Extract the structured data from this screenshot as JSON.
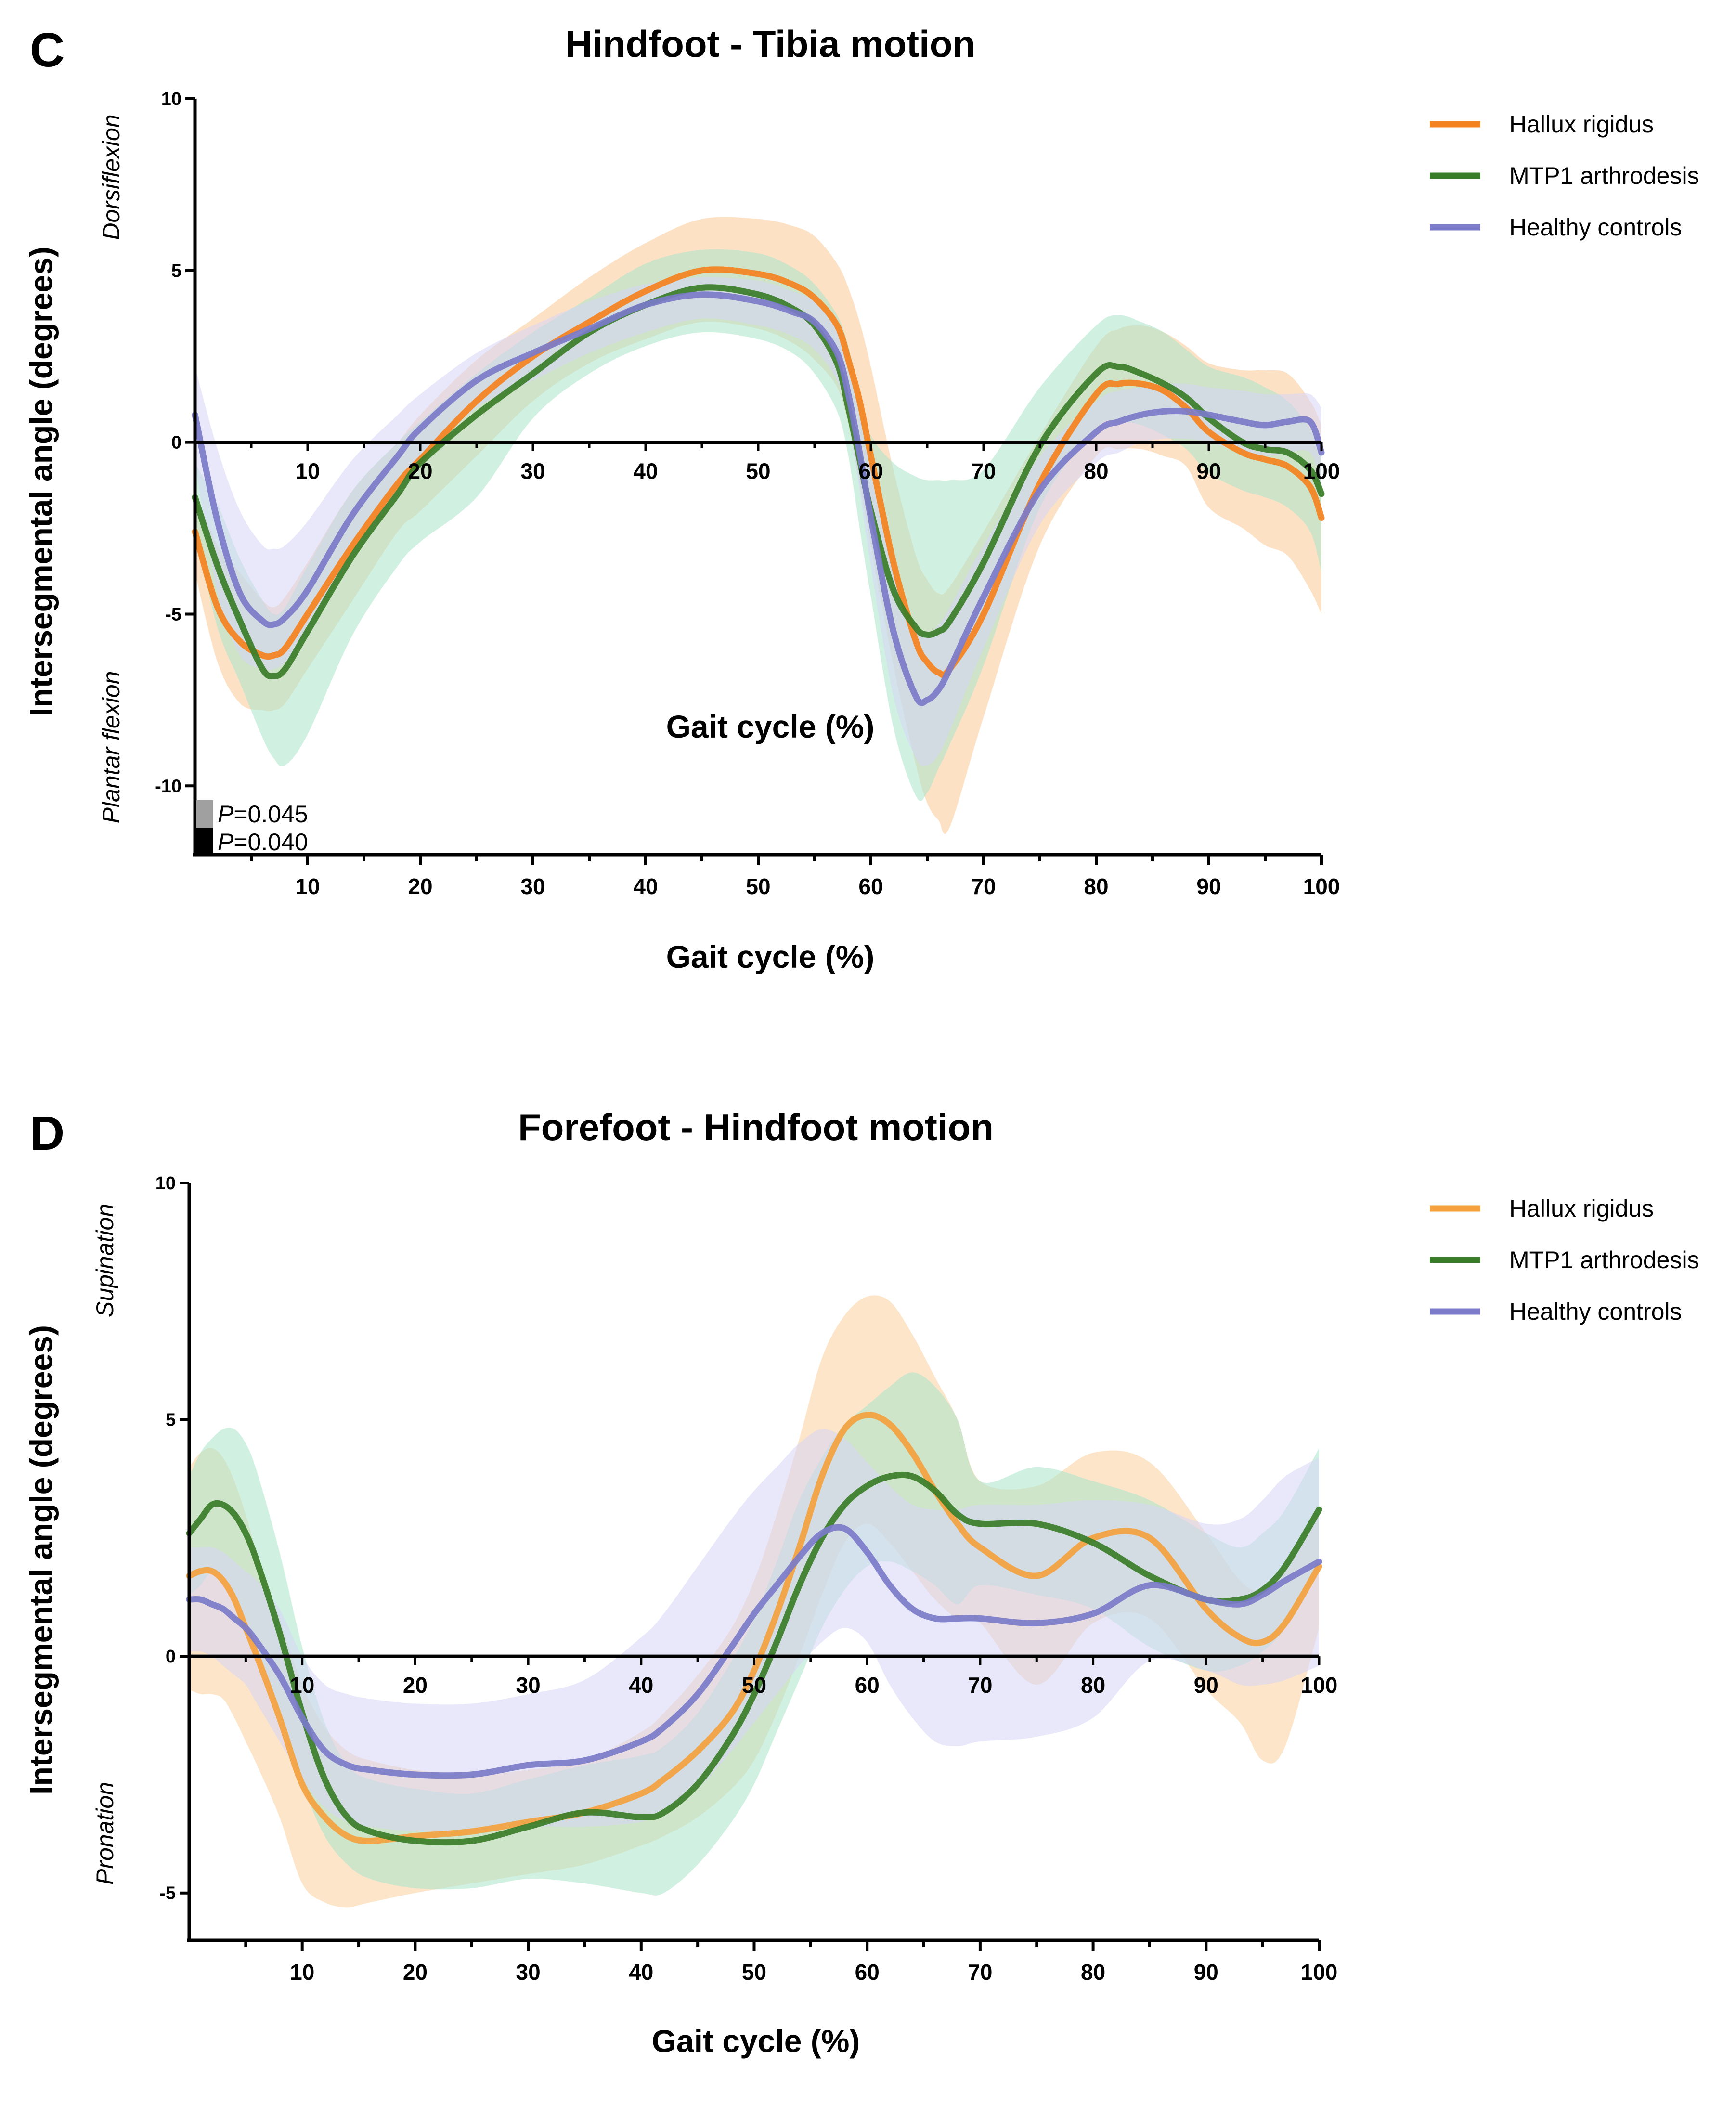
{
  "panels": [
    {
      "letter": "C",
      "chart_data": {
        "type": "line",
        "title": "Hindfoot - Tibia motion",
        "xlabel": "Gait cycle (%)",
        "ylabel": "Intersegmental angle (degrees)",
        "direction_positive": "Dorsiflexion",
        "direction_negative": "Plantar flexion",
        "xlim": [
          0,
          100
        ],
        "ylim": [
          -12,
          10
        ],
        "x_ticks": [
          10,
          20,
          30,
          40,
          50,
          60,
          70,
          80,
          90,
          100
        ],
        "y_ticks": [
          -10,
          -5,
          0,
          5,
          10
        ],
        "zero_line_tick_labels": true,
        "legend": [
          "Hallux rigidus",
          "MTP1 arthrodesis",
          "Healthy controls"
        ],
        "x": [
          0,
          2,
          4,
          6,
          7,
          8,
          10,
          14,
          18,
          20,
          25,
          30,
          35,
          40,
          45,
          50,
          53,
          55,
          57,
          58,
          59,
          60,
          62,
          64,
          65,
          66,
          67,
          70,
          75,
          80,
          82,
          84,
          86,
          88,
          90,
          93,
          95,
          97,
          99,
          100
        ],
        "series": [
          {
            "name": "Hallux rigidus",
            "color": "#f4821f",
            "band_color": "#fbc995",
            "mean": [
              -2.6,
              -4.8,
              -5.8,
              -6.2,
              -6.2,
              -6.0,
              -5.0,
              -3.0,
              -1.2,
              -0.5,
              1.2,
              2.5,
              3.5,
              4.4,
              5.0,
              4.9,
              4.6,
              4.2,
              3.4,
              2.4,
              1.2,
              -0.4,
              -3.5,
              -5.8,
              -6.4,
              -6.7,
              -6.6,
              -5.0,
              -1.2,
              1.4,
              1.7,
              1.7,
              1.5,
              1.0,
              0.3,
              -0.3,
              -0.5,
              -0.7,
              -1.3,
              -2.2
            ],
            "upper": [
              -1.4,
              -3.0,
              -3.8,
              -4.6,
              -4.8,
              -4.5,
              -3.5,
              -1.4,
              0.0,
              0.8,
              2.4,
              3.6,
              4.8,
              5.8,
              6.5,
              6.5,
              6.3,
              6.0,
              5.2,
              4.5,
              3.5,
              2.2,
              -0.8,
              -3.3,
              -4.0,
              -4.4,
              -4.2,
              -2.6,
              0.2,
              2.8,
              3.3,
              3.4,
              3.2,
              2.8,
              2.3,
              2.1,
              2.1,
              2.0,
              1.2,
              0.5
            ],
            "lower": [
              -3.8,
              -6.4,
              -7.6,
              -7.8,
              -7.8,
              -7.6,
              -6.6,
              -4.6,
              -2.6,
              -2.0,
              -0.4,
              1.2,
              2.3,
              3.0,
              3.5,
              3.3,
              2.9,
              2.4,
              1.6,
              0.5,
              -1.2,
              -3.0,
              -6.5,
              -9.4,
              -10.5,
              -11.0,
              -11.2,
              -8.0,
              -3.0,
              -0.4,
              -0.2,
              -0.2,
              -0.4,
              -0.7,
              -1.9,
              -2.5,
              -3.0,
              -3.3,
              -4.3,
              -5.0
            ]
          },
          {
            "name": "MTP1 arthrodesis",
            "color": "#3a7d28",
            "band_color": "#a9e6cb",
            "mean": [
              -1.6,
              -3.6,
              -5.2,
              -6.6,
              -6.8,
              -6.6,
              -5.5,
              -3.3,
              -1.5,
              -0.6,
              0.8,
              2.0,
              3.2,
              4.0,
              4.5,
              4.3,
              3.9,
              3.4,
              2.3,
              1.0,
              -0.5,
              -2.0,
              -4.3,
              -5.4,
              -5.6,
              -5.5,
              -5.2,
              -3.5,
              -0.1,
              2.0,
              2.2,
              2.0,
              1.7,
              1.3,
              0.7,
              0.0,
              -0.2,
              -0.3,
              -0.8,
              -1.5
            ],
            "upper": [
              -0.6,
              -1.8,
              -3.4,
              -4.6,
              -5.0,
              -4.8,
              -3.6,
              -1.4,
              0.0,
              0.6,
              2.0,
              3.2,
              4.2,
              5.2,
              5.6,
              5.5,
              5.1,
              4.6,
              3.7,
              2.8,
              1.3,
              0.2,
              -0.6,
              -1.0,
              -1.1,
              -1.1,
              -1.1,
              -0.8,
              1.6,
              3.4,
              3.7,
              3.5,
              3.2,
              2.7,
              2.2,
              1.9,
              1.6,
              1.2,
              0.4,
              -0.3
            ],
            "lower": [
              -2.6,
              -5.4,
              -7.0,
              -8.6,
              -9.2,
              -9.4,
              -8.5,
              -5.6,
              -3.6,
              -2.9,
              -1.6,
              0.7,
              2.0,
              2.8,
              3.2,
              3.0,
              2.6,
              2.0,
              0.9,
              -0.4,
              -2.5,
              -4.5,
              -8.3,
              -10.3,
              -10.2,
              -9.5,
              -8.8,
              -6.5,
              -1.9,
              0.4,
              0.6,
              0.5,
              0.2,
              -0.2,
              -0.9,
              -1.4,
              -1.6,
              -1.9,
              -2.6,
              -3.8
            ]
          },
          {
            "name": "Healthy controls",
            "color": "#7b7bc9",
            "band_color": "#d6d6f5",
            "mean": [
              0.8,
              -2.3,
              -4.4,
              -5.2,
              -5.3,
              -5.1,
              -4.3,
              -2.1,
              -0.4,
              0.4,
              1.8,
              2.6,
              3.3,
              4.0,
              4.3,
              4.1,
              3.8,
              3.5,
              2.6,
              1.4,
              -0.3,
              -2.2,
              -5.5,
              -7.4,
              -7.5,
              -7.2,
              -6.6,
              -4.5,
              -1.4,
              0.3,
              0.6,
              0.8,
              0.9,
              0.9,
              0.8,
              0.6,
              0.5,
              0.6,
              0.6,
              -0.3
            ],
            "upper": [
              2.2,
              -0.2,
              -2.0,
              -3.0,
              -3.1,
              -3.0,
              -2.3,
              -0.5,
              0.8,
              1.4,
              2.6,
              3.4,
              4.1,
              4.6,
              4.8,
              4.7,
              4.4,
              4.1,
              3.3,
              2.3,
              0.8,
              -0.8,
              -3.6,
              -5.4,
              -5.6,
              -5.3,
              -4.8,
              -3.0,
              -0.4,
              1.2,
              1.5,
              1.6,
              1.7,
              1.7,
              1.6,
              1.5,
              1.4,
              1.4,
              1.4,
              1.0
            ],
            "lower": [
              -0.6,
              -4.4,
              -6.2,
              -6.6,
              -6.6,
              -6.4,
              -5.6,
              -3.4,
              -1.6,
              -0.6,
              1.0,
              1.8,
              2.6,
              3.2,
              3.6,
              3.4,
              3.1,
              2.7,
              1.8,
              0.6,
              -1.4,
              -3.6,
              -7.4,
              -9.2,
              -9.4,
              -9.1,
              -8.4,
              -6.0,
              -2.4,
              -0.6,
              -0.3,
              0.0,
              0.1,
              0.1,
              0.0,
              -0.3,
              -0.4,
              -0.3,
              -0.3,
              -1.3
            ]
          }
        ],
        "significance_bars": [
          {
            "label_p": "P",
            "label_value": "=0.045",
            "color": "#a0a0a0",
            "x_start": 0,
            "x_end": 1.5
          },
          {
            "label_p": "P",
            "label_value": "=0.040",
            "color": "#000000",
            "x_start": 0,
            "x_end": 1.5
          }
        ]
      }
    },
    {
      "letter": "D",
      "chart_data": {
        "type": "line",
        "title": "Forefoot - Hindfoot motion",
        "xlabel": "Gait cycle (%)",
        "ylabel": "Intersegmental angle (degrees)",
        "direction_positive": "Supination",
        "direction_negative": "Pronation",
        "xlim": [
          0,
          100
        ],
        "ylim": [
          -6,
          10
        ],
        "x_ticks": [
          10,
          20,
          30,
          40,
          50,
          60,
          70,
          80,
          90,
          100
        ],
        "y_ticks": [
          -5,
          0,
          5,
          10
        ],
        "zero_line_tick_labels": true,
        "legend": [
          "Hallux rigidus",
          "MTP1 arthrodesis",
          "Healthy controls"
        ],
        "x": [
          0,
          1,
          2,
          3,
          4,
          5,
          6,
          8,
          10,
          12,
          14,
          16,
          20,
          25,
          30,
          35,
          40,
          42,
          45,
          48,
          50,
          52,
          54,
          56,
          58,
          60,
          62,
          64,
          66,
          68,
          70,
          75,
          80,
          85,
          90,
          93,
          95,
          97,
          100
        ],
        "series": [
          {
            "name": "Hallux rigidus",
            "color": "#f4a13e",
            "band_color": "#fbcf9e",
            "mean": [
              1.7,
              1.8,
              1.8,
              1.6,
              1.2,
              0.6,
              0.0,
              -1.3,
              -2.7,
              -3.4,
              -3.8,
              -3.9,
              -3.8,
              -3.7,
              -3.5,
              -3.3,
              -2.9,
              -2.6,
              -2.0,
              -1.2,
              -0.3,
              0.9,
              2.3,
              3.8,
              4.8,
              5.1,
              4.9,
              4.3,
              3.5,
              2.8,
              2.3,
              1.7,
              2.5,
              2.5,
              1.0,
              0.4,
              0.3,
              0.7,
              1.9
            ],
            "upper": [
              4.0,
              4.3,
              4.4,
              4.2,
              3.7,
              3.0,
              2.2,
              0.8,
              -0.6,
              -1.5,
              -2.0,
              -2.2,
              -2.4,
              -2.5,
              -2.4,
              -2.2,
              -1.6,
              -1.2,
              -0.4,
              0.6,
              1.6,
              3.0,
              4.6,
              6.3,
              7.2,
              7.6,
              7.5,
              6.8,
              5.9,
              5.0,
              3.7,
              3.6,
              4.3,
              4.1,
              2.6,
              1.6,
              1.4,
              1.9,
              3.2
            ],
            "lower": [
              -0.7,
              -0.8,
              -0.8,
              -0.9,
              -1.3,
              -1.8,
              -2.3,
              -3.4,
              -4.8,
              -5.2,
              -5.3,
              -5.2,
              -5.0,
              -4.8,
              -4.6,
              -4.4,
              -4.0,
              -3.8,
              -3.4,
              -2.8,
              -2.2,
              -1.2,
              0.0,
              1.3,
              2.4,
              2.8,
              2.4,
              1.8,
              1.2,
              0.8,
              0.7,
              -0.6,
              0.7,
              0.8,
              -0.7,
              -1.4,
              -2.2,
              -1.9,
              0.6
            ]
          },
          {
            "name": "MTP1 arthrodesis",
            "color": "#3a7d28",
            "band_color": "#a9e6cb",
            "mean": [
              2.6,
              2.9,
              3.2,
              3.2,
              3.0,
              2.6,
              2.0,
              0.5,
              -1.2,
              -2.6,
              -3.4,
              -3.7,
              -3.9,
              -3.9,
              -3.6,
              -3.3,
              -3.4,
              -3.3,
              -2.7,
              -1.7,
              -0.8,
              0.3,
              1.5,
              2.5,
              3.2,
              3.6,
              3.8,
              3.8,
              3.5,
              3.0,
              2.8,
              2.8,
              2.4,
              1.7,
              1.2,
              1.2,
              1.4,
              1.9,
              3.1
            ],
            "upper": [
              3.8,
              4.3,
              4.6,
              4.8,
              4.8,
              4.5,
              3.9,
              2.2,
              0.2,
              -1.4,
              -2.3,
              -2.6,
              -2.8,
              -2.9,
              -2.6,
              -2.3,
              -2.1,
              -1.9,
              -1.2,
              -0.1,
              0.8,
              2.0,
              3.3,
              4.2,
              4.9,
              5.3,
              5.7,
              6.0,
              5.7,
              5.0,
              3.7,
              4.0,
              3.7,
              3.3,
              2.6,
              2.3,
              2.6,
              3.1,
              4.4
            ],
            "lower": [
              1.3,
              1.5,
              1.8,
              1.7,
              1.3,
              0.8,
              0.2,
              -1.3,
              -2.7,
              -3.8,
              -4.4,
              -4.7,
              -4.9,
              -4.9,
              -4.7,
              -4.8,
              -5.0,
              -5.0,
              -4.4,
              -3.5,
              -2.7,
              -1.6,
              -0.5,
              0.6,
              1.4,
              1.9,
              2.0,
              1.8,
              1.5,
              1.1,
              1.5,
              1.3,
              1.0,
              0.2,
              -0.3,
              -0.2,
              0.1,
              0.6,
              1.8
            ]
          },
          {
            "name": "Healthy controls",
            "color": "#7b7bc9",
            "band_color": "#d6d6f5",
            "mean": [
              1.2,
              1.2,
              1.1,
              1.0,
              0.8,
              0.6,
              0.3,
              -0.4,
              -1.3,
              -2.0,
              -2.3,
              -2.4,
              -2.5,
              -2.5,
              -2.3,
              -2.2,
              -1.8,
              -1.5,
              -0.8,
              0.2,
              0.9,
              1.5,
              2.1,
              2.6,
              2.7,
              2.2,
              1.5,
              1.0,
              0.8,
              0.8,
              0.8,
              0.7,
              0.9,
              1.5,
              1.2,
              1.1,
              1.3,
              1.6,
              2.0
            ],
            "upper": [
              2.3,
              2.3,
              2.3,
              2.2,
              2.0,
              1.8,
              1.6,
              1.0,
              0.0,
              -0.6,
              -0.8,
              -0.9,
              -1.0,
              -1.0,
              -0.8,
              -0.5,
              0.4,
              0.9,
              1.9,
              2.9,
              3.5,
              4.0,
              4.5,
              4.8,
              4.6,
              4.1,
              3.6,
              3.2,
              3.1,
              3.1,
              3.2,
              3.2,
              3.3,
              3.2,
              2.8,
              2.9,
              3.3,
              3.8,
              4.2
            ],
            "lower": [
              0.1,
              0.1,
              0.0,
              -0.2,
              -0.4,
              -0.6,
              -1.0,
              -1.8,
              -2.6,
              -3.2,
              -3.5,
              -3.6,
              -3.7,
              -3.7,
              -3.6,
              -3.6,
              -3.5,
              -3.3,
              -2.8,
              -2.0,
              -1.4,
              -0.8,
              -0.2,
              0.3,
              0.6,
              0.3,
              -0.6,
              -1.3,
              -1.8,
              -1.9,
              -1.8,
              -1.7,
              -1.3,
              -0.1,
              -0.3,
              -0.6,
              -0.6,
              -0.5,
              -0.2
            ]
          }
        ]
      }
    }
  ]
}
